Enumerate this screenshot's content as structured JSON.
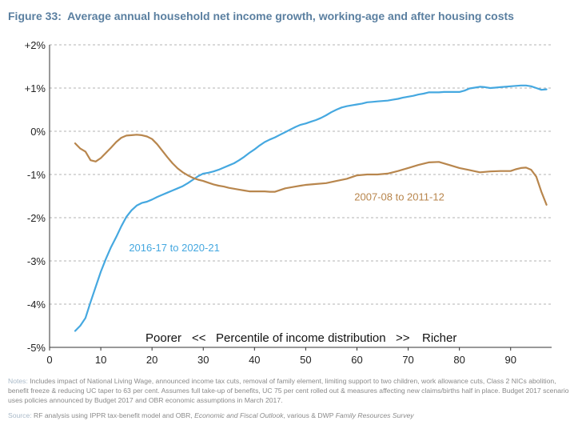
{
  "figure": {
    "label": "Figure 33:",
    "title": "Average annual household net income growth, working-age and after housing costs"
  },
  "chart_data": {
    "type": "line",
    "xlim": [
      0,
      98
    ],
    "ylim": [
      -5,
      2
    ],
    "x_ticks": [
      0,
      10,
      20,
      30,
      40,
      50,
      60,
      70,
      80,
      90
    ],
    "x_tick_labels": [
      "0",
      "10",
      "20",
      "30",
      "40",
      "50",
      "60",
      "70",
      "80",
      "90"
    ],
    "y_ticks": [
      2,
      1,
      0,
      -1,
      -2,
      -3,
      -4,
      -5
    ],
    "y_tick_labels": [
      "+2%",
      "+1%",
      "0%",
      "-1%",
      "-2%",
      "-3%",
      "-4%",
      "-5%"
    ],
    "grid": "horizontal dashed",
    "axis_annotation": {
      "poorer": "Poorer",
      "arrows_left": "<<",
      "middle": "Percentile of income distribution",
      "arrows_right": ">>",
      "richer": "Richer"
    },
    "series": [
      {
        "name": "2016-17 to 2020-21",
        "color": "#45a8e0",
        "x": [
          5,
          6,
          7,
          8,
          9,
          10,
          11,
          12,
          13,
          14,
          15,
          16,
          17,
          18,
          19,
          20,
          21,
          22,
          23,
          24,
          25,
          26,
          27,
          28,
          29,
          30,
          31,
          32,
          33,
          34,
          35,
          36,
          37,
          38,
          39,
          40,
          41,
          42,
          43,
          44,
          45,
          46,
          47,
          48,
          49,
          50,
          51,
          52,
          53,
          54,
          55,
          56,
          57,
          58,
          59,
          60,
          61,
          62,
          63,
          64,
          65,
          66,
          67,
          68,
          69,
          70,
          71,
          72,
          73,
          74,
          75,
          76,
          77,
          78,
          79,
          80,
          81,
          82,
          83,
          84,
          85,
          86,
          87,
          88,
          89,
          90,
          91,
          92,
          93,
          94,
          95,
          96,
          97
        ],
        "y": [
          -4.62,
          -4.5,
          -4.32,
          -3.95,
          -3.6,
          -3.25,
          -2.95,
          -2.68,
          -2.45,
          -2.2,
          -1.98,
          -1.83,
          -1.72,
          -1.66,
          -1.63,
          -1.58,
          -1.52,
          -1.47,
          -1.42,
          -1.37,
          -1.32,
          -1.27,
          -1.2,
          -1.12,
          -1.04,
          -0.98,
          -0.96,
          -0.93,
          -0.89,
          -0.84,
          -0.79,
          -0.74,
          -0.67,
          -0.59,
          -0.5,
          -0.42,
          -0.33,
          -0.25,
          -0.19,
          -0.14,
          -0.08,
          -0.02,
          0.04,
          0.1,
          0.15,
          0.18,
          0.22,
          0.26,
          0.31,
          0.37,
          0.44,
          0.5,
          0.55,
          0.58,
          0.6,
          0.62,
          0.64,
          0.67,
          0.68,
          0.69,
          0.7,
          0.71,
          0.73,
          0.75,
          0.78,
          0.8,
          0.82,
          0.85,
          0.87,
          0.9,
          0.9,
          0.9,
          0.91,
          0.91,
          0.91,
          0.91,
          0.94,
          0.99,
          1.01,
          1.03,
          1.02,
          1.0,
          1.01,
          1.02,
          1.03,
          1.04,
          1.05,
          1.06,
          1.06,
          1.04,
          1.0,
          0.96,
          0.97
        ]
      },
      {
        "name": "2007-08 to 2011-12",
        "color": "#b8864d",
        "x": [
          5,
          6,
          7,
          8,
          9,
          10,
          11,
          12,
          13,
          14,
          15,
          16,
          17,
          18,
          19,
          20,
          21,
          22,
          23,
          24,
          25,
          26,
          27,
          28,
          29,
          30,
          31,
          32,
          33,
          34,
          35,
          36,
          37,
          38,
          39,
          40,
          41,
          42,
          43,
          44,
          45,
          46,
          47,
          48,
          49,
          50,
          52,
          54,
          56,
          58,
          60,
          62,
          64,
          66,
          68,
          70,
          72,
          74,
          76,
          78,
          80,
          82,
          84,
          86,
          88,
          90,
          91,
          92,
          93,
          94,
          95,
          96,
          97
        ],
        "y": [
          -0.28,
          -0.4,
          -0.47,
          -0.67,
          -0.7,
          -0.62,
          -0.5,
          -0.38,
          -0.25,
          -0.15,
          -0.1,
          -0.09,
          -0.08,
          -0.09,
          -0.12,
          -0.18,
          -0.3,
          -0.45,
          -0.6,
          -0.74,
          -0.86,
          -0.95,
          -1.02,
          -1.08,
          -1.12,
          -1.15,
          -1.19,
          -1.23,
          -1.26,
          -1.28,
          -1.31,
          -1.33,
          -1.35,
          -1.37,
          -1.39,
          -1.39,
          -1.39,
          -1.39,
          -1.4,
          -1.4,
          -1.36,
          -1.32,
          -1.3,
          -1.28,
          -1.26,
          -1.24,
          -1.22,
          -1.2,
          -1.15,
          -1.1,
          -1.02,
          -1.0,
          -1.0,
          -0.98,
          -0.92,
          -0.85,
          -0.78,
          -0.72,
          -0.71,
          -0.78,
          -0.85,
          -0.9,
          -0.95,
          -0.93,
          -0.92,
          -0.92,
          -0.88,
          -0.85,
          -0.84,
          -0.89,
          -1.05,
          -1.4,
          -1.7
        ]
      }
    ],
    "annotations": [
      {
        "text": "2016-17 to 2020-21",
        "x": 15.5,
        "y": -2.78,
        "color": "#45a8e0"
      },
      {
        "text": "2007-08 to 2011-12",
        "x": 59.5,
        "y": -1.6,
        "color": "#b8864d"
      }
    ]
  },
  "notes": {
    "label": "Notes:",
    "text": "Includes impact of National Living Wage, announced income tax cuts, removal of family element, limiting support to two children, work allowance cuts, Class 2 NICs abolition, benefit freeze & reducing UC taper to 63 per cent. Assumes full take-up of benefits, UC 75 per cent rolled out & measures affecting new claims/births half in place. Budget 2017 scenario uses policies announced by Budget 2017 and OBR economic assumptions in March 2017."
  },
  "source": {
    "label": "Source:",
    "text_a": "RF analysis using IPPR tax-benefit model and OBR,",
    "title_1": "Economic and Fiscal Outlook",
    "text_b": ", various & DWP",
    "title_2": "Family Resources Survey"
  }
}
